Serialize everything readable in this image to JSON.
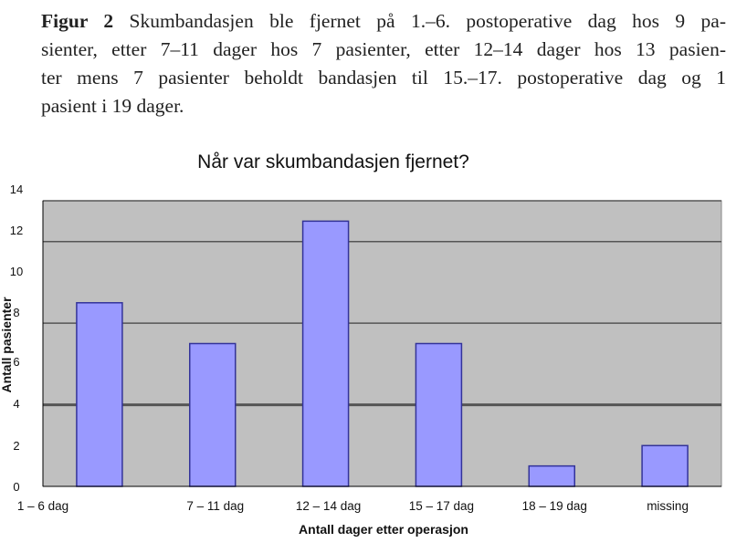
{
  "caption": {
    "label": "Figur 2",
    "lines": [
      " Skumbandasjen ble fjernet på 1.–6. postoperative dag hos 9 pa-",
      "sienter, etter 7–11 dager hos 7 pasienter, etter 12–14 dager hos 13 pasien-",
      "ter mens 7 pasienter beholdt bandasjen til 15.–17. postoperative dag og 1",
      "pasient i 19 dager."
    ]
  },
  "chart_data": {
    "type": "bar",
    "title": "Når var skumbandasjen fjernet?",
    "xlabel": "Antall dager etter operasjon",
    "ylabel": "Antall pasienter",
    "categories": [
      "1 – 6 dag",
      "7 – 11 dag",
      "12 – 14 dag",
      "15 – 17 dag",
      "18 – 19 dag",
      "missing"
    ],
    "values": [
      9,
      7,
      13,
      7,
      1,
      2
    ],
    "ylim": [
      0,
      14
    ],
    "yticks": [
      "0",
      "2",
      "4",
      "6",
      "8",
      "10",
      "12",
      "14"
    ],
    "gridlines": [
      4,
      8,
      12
    ],
    "grid": true,
    "colors": {
      "bar": "#9999ff",
      "bar_edge": "#333399",
      "plot_bg": "#c0c0c0",
      "grid": "#555555"
    }
  }
}
